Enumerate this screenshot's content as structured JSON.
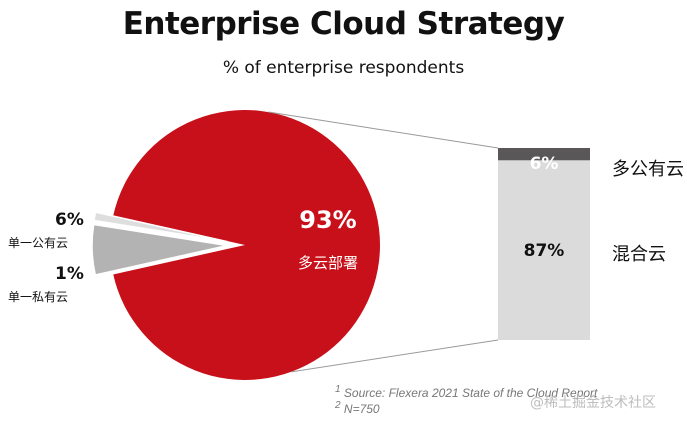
{
  "title": "Enterprise Cloud Strategy",
  "subtitle": "% of enterprise respondents",
  "chart_data": {
    "type": "pie",
    "title": "Enterprise Cloud Strategy",
    "subtitle": "% of enterprise respondents",
    "slices": [
      {
        "label": "多云部署",
        "value": 93,
        "display": "93%",
        "color": "#c8101a"
      },
      {
        "label": "单一公有云",
        "value": 6,
        "display": "6%",
        "color": "#b3b3b3"
      },
      {
        "label": "单一私有云",
        "value": 1,
        "display": "1%",
        "color": "#dedede"
      }
    ],
    "breakdown": {
      "type": "stacked_bar",
      "of": "多云部署",
      "segments": [
        {
          "label": "多公有云",
          "value": 6,
          "display": "6%",
          "color": "#595758",
          "text_color": "#ffffff"
        },
        {
          "label": "混合云",
          "value": 87,
          "display": "87%",
          "color": "#dcdbdc",
          "text_color": "#111111"
        }
      ]
    }
  },
  "footnotes": [
    {
      "sup": "1",
      "text": "Source: Flexera 2021 State of the Cloud Report"
    },
    {
      "sup": "2",
      "text": "N=750"
    }
  ],
  "watermark": "@稀土掘金技术社区"
}
